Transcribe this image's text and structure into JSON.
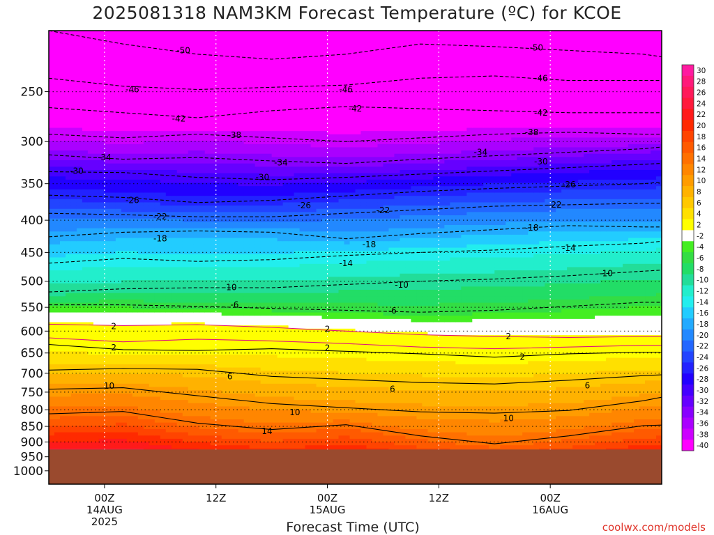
{
  "title": "2025081318 NAM3KM Forecast Temperature (ºC) for KCOE",
  "credit": "coolwx.com/models",
  "colors": {
    "ground": "#9a4a2e",
    "freezing_contour": "#e0157a"
  },
  "chart_data": {
    "type": "heatmap",
    "title": "2025081318 NAM3KM Forecast Temperature (ºC) for KCOE",
    "xlabel": "Forecast Time (UTC)",
    "ylabel": "",
    "grid": true,
    "y_axis": {
      "quantity": "pressure (hPa)",
      "inverted": true,
      "log_scale": true,
      "range": [
        1050,
        200
      ],
      "ticks": [
        250,
        300,
        350,
        400,
        450,
        500,
        550,
        600,
        650,
        700,
        750,
        800,
        850,
        900,
        950,
        1000
      ]
    },
    "x_axis": {
      "range": [
        "2025-08-13T18Z",
        "2025-08-16T12Z"
      ],
      "ticks": [
        {
          "time": "2025-08-14T00Z",
          "label": "00Z",
          "sublabel": "14AUG",
          "sublabel2": "2025"
        },
        {
          "time": "2025-08-14T12Z",
          "label": "12Z",
          "sublabel": "",
          "sublabel2": ""
        },
        {
          "time": "2025-08-15T00Z",
          "label": "00Z",
          "sublabel": "15AUG",
          "sublabel2": ""
        },
        {
          "time": "2025-08-15T12Z",
          "label": "12Z",
          "sublabel": "",
          "sublabel2": ""
        },
        {
          "time": "2025-08-16T00Z",
          "label": "00Z",
          "sublabel": "16AUG",
          "sublabel2": ""
        }
      ]
    },
    "ground_level_hpa": 925,
    "contours": [
      {
        "value": -50,
        "label": "-50",
        "style": "dashed",
        "points": [
          [
            0,
            200
          ],
          [
            8,
            210
          ],
          [
            16,
            218
          ],
          [
            24,
            222
          ],
          [
            32,
            218
          ],
          [
            40,
            210
          ],
          [
            48,
            212
          ],
          [
            56,
            215
          ],
          [
            64,
            218
          ],
          [
            66,
            220
          ]
        ]
      },
      {
        "value": -46,
        "label": "-46",
        "style": "dashed",
        "points": [
          [
            0,
            238
          ],
          [
            8,
            245
          ],
          [
            16,
            248
          ],
          [
            24,
            246
          ],
          [
            32,
            244
          ],
          [
            40,
            238
          ],
          [
            48,
            236
          ],
          [
            56,
            240
          ],
          [
            64,
            240
          ],
          [
            66,
            240
          ]
        ]
      },
      {
        "value": -42,
        "label": "-42",
        "style": "dashed",
        "points": [
          [
            0,
            265
          ],
          [
            8,
            270
          ],
          [
            16,
            275
          ],
          [
            24,
            268
          ],
          [
            32,
            264
          ],
          [
            40,
            266
          ],
          [
            48,
            268
          ],
          [
            56,
            270
          ],
          [
            64,
            270
          ],
          [
            66,
            270
          ]
        ]
      },
      {
        "value": -38,
        "label": "-38",
        "style": "dashed",
        "points": [
          [
            0,
            292
          ],
          [
            8,
            296
          ],
          [
            16,
            292
          ],
          [
            24,
            296
          ],
          [
            32,
            300
          ],
          [
            40,
            296
          ],
          [
            48,
            292
          ],
          [
            56,
            290
          ],
          [
            64,
            292
          ],
          [
            66,
            292
          ]
        ]
      },
      {
        "value": -34,
        "label": "-34",
        "style": "dashed",
        "points": [
          [
            0,
            315
          ],
          [
            8,
            320
          ],
          [
            16,
            318
          ],
          [
            24,
            322
          ],
          [
            32,
            325
          ],
          [
            40,
            320
          ],
          [
            48,
            316
          ],
          [
            56,
            312
          ],
          [
            64,
            308
          ],
          [
            66,
            306
          ]
        ]
      },
      {
        "value": -30,
        "label": "-30",
        "style": "dashed",
        "points": [
          [
            0,
            335
          ],
          [
            8,
            336
          ],
          [
            16,
            342
          ],
          [
            24,
            345
          ],
          [
            32,
            342
          ],
          [
            40,
            338
          ],
          [
            48,
            334
          ],
          [
            56,
            330
          ],
          [
            64,
            326
          ],
          [
            66,
            325
          ]
        ]
      },
      {
        "value": -26,
        "label": "-26",
        "style": "dashed",
        "points": [
          [
            0,
            365
          ],
          [
            8,
            368
          ],
          [
            16,
            375
          ],
          [
            24,
            372
          ],
          [
            32,
            366
          ],
          [
            40,
            360
          ],
          [
            48,
            356
          ],
          [
            56,
            353
          ],
          [
            64,
            350
          ],
          [
            66,
            348
          ]
        ]
      },
      {
        "value": -22,
        "label": "-22",
        "style": "dashed",
        "points": [
          [
            0,
            390
          ],
          [
            8,
            392
          ],
          [
            16,
            395
          ],
          [
            24,
            395
          ],
          [
            32,
            390
          ],
          [
            40,
            385
          ],
          [
            48,
            380
          ],
          [
            56,
            378
          ],
          [
            64,
            376
          ],
          [
            66,
            376
          ]
        ]
      },
      {
        "value": -18,
        "label": "-18",
        "style": "dashed",
        "points": [
          [
            0,
            425
          ],
          [
            8,
            418
          ],
          [
            16,
            416
          ],
          [
            24,
            418
          ],
          [
            32,
            428
          ],
          [
            40,
            420
          ],
          [
            48,
            414
          ],
          [
            56,
            408
          ],
          [
            64,
            410
          ],
          [
            66,
            410
          ]
        ]
      },
      {
        "value": -14,
        "label": "-14",
        "style": "dashed",
        "points": [
          [
            0,
            468
          ],
          [
            8,
            460
          ],
          [
            16,
            465
          ],
          [
            24,
            462
          ],
          [
            32,
            455
          ],
          [
            40,
            450
          ],
          [
            48,
            446
          ],
          [
            56,
            440
          ],
          [
            64,
            435
          ],
          [
            66,
            432
          ]
        ]
      },
      {
        "value": -10,
        "label": "-10",
        "style": "dashed",
        "points": [
          [
            0,
            520
          ],
          [
            8,
            514
          ],
          [
            16,
            512
          ],
          [
            24,
            512
          ],
          [
            32,
            506
          ],
          [
            40,
            500
          ],
          [
            48,
            496
          ],
          [
            56,
            490
          ],
          [
            64,
            482
          ],
          [
            66,
            480
          ]
        ]
      },
      {
        "value": -6,
        "label": "-6",
        "style": "dashed",
        "points": [
          [
            0,
            545
          ],
          [
            8,
            545
          ],
          [
            16,
            548
          ],
          [
            24,
            552
          ],
          [
            32,
            556
          ],
          [
            40,
            560
          ],
          [
            48,
            556
          ],
          [
            56,
            548
          ],
          [
            64,
            540
          ],
          [
            66,
            540
          ]
        ]
      },
      {
        "value": 2,
        "label": "2",
        "style": "solid",
        "color": "freezing",
        "points": [
          [
            0,
            585
          ],
          [
            8,
            588
          ],
          [
            16,
            586
          ],
          [
            24,
            592
          ],
          [
            32,
            600
          ],
          [
            40,
            608
          ],
          [
            48,
            612
          ],
          [
            56,
            614
          ],
          [
            64,
            612
          ],
          [
            66,
            612
          ]
        ]
      },
      {
        "value": 2,
        "label": "2",
        "style": "solid",
        "color": "freezing",
        "points": [
          [
            0,
            615
          ],
          [
            8,
            624
          ],
          [
            16,
            618
          ],
          [
            24,
            622
          ],
          [
            32,
            628
          ],
          [
            40,
            636
          ],
          [
            48,
            640
          ],
          [
            56,
            636
          ],
          [
            64,
            632
          ],
          [
            66,
            632
          ]
        ]
      },
      {
        "value": 2,
        "label": "2",
        "style": "solid",
        "points": [
          [
            0,
            630
          ],
          [
            8,
            642
          ],
          [
            16,
            644
          ],
          [
            24,
            640
          ],
          [
            32,
            646
          ],
          [
            40,
            652
          ],
          [
            48,
            660
          ],
          [
            56,
            652
          ],
          [
            64,
            648
          ],
          [
            66,
            648
          ]
        ]
      },
      {
        "value": 6,
        "label": "6",
        "style": "solid",
        "points": [
          [
            0,
            692
          ],
          [
            8,
            688
          ],
          [
            16,
            690
          ],
          [
            24,
            708
          ],
          [
            32,
            716
          ],
          [
            40,
            724
          ],
          [
            48,
            728
          ],
          [
            56,
            718
          ],
          [
            64,
            706
          ],
          [
            66,
            704
          ]
        ]
      },
      {
        "value": 10,
        "label": "10",
        "style": "solid",
        "points": [
          [
            0,
            742
          ],
          [
            8,
            738
          ],
          [
            16,
            760
          ],
          [
            24,
            782
          ],
          [
            32,
            794
          ],
          [
            40,
            806
          ],
          [
            48,
            810
          ],
          [
            56,
            802
          ],
          [
            64,
            774
          ],
          [
            66,
            764
          ]
        ]
      },
      {
        "value": 14,
        "label": "14",
        "style": "solid",
        "points": [
          [
            0,
            812
          ],
          [
            8,
            805
          ],
          [
            16,
            840
          ],
          [
            24,
            860
          ],
          [
            32,
            845
          ],
          [
            40,
            880
          ],
          [
            48,
            906
          ],
          [
            56,
            880
          ],
          [
            64,
            848
          ],
          [
            66,
            846
          ]
        ]
      }
    ],
    "contour_labels": [
      {
        "text": "-50",
        "t": 14.5,
        "p": 215
      },
      {
        "text": "-50",
        "t": 52.5,
        "p": 213
      },
      {
        "text": "-46",
        "t": 9,
        "p": 248
      },
      {
        "text": "-46",
        "t": 32,
        "p": 248
      },
      {
        "text": "-46",
        "t": 53,
        "p": 238
      },
      {
        "text": "-42",
        "t": 14,
        "p": 276
      },
      {
        "text": "-42",
        "t": 33,
        "p": 266
      },
      {
        "text": "-42",
        "t": 53,
        "p": 270
      },
      {
        "text": "-38",
        "t": 20,
        "p": 293
      },
      {
        "text": "-38",
        "t": 52,
        "p": 290
      },
      {
        "text": "-34",
        "t": 6,
        "p": 318
      },
      {
        "text": "-34",
        "t": 25,
        "p": 324
      },
      {
        "text": "-34",
        "t": 46.5,
        "p": 312
      },
      {
        "text": "-30",
        "t": 53,
        "p": 323
      },
      {
        "text": "-30",
        "t": 3,
        "p": 334
      },
      {
        "text": "-30",
        "t": 23,
        "p": 342
      },
      {
        "text": "-26",
        "t": 9,
        "p": 372
      },
      {
        "text": "-26",
        "t": 27.5,
        "p": 379
      },
      {
        "text": "-26",
        "t": 56,
        "p": 351
      },
      {
        "text": "-22",
        "t": 12,
        "p": 395
      },
      {
        "text": "-22",
        "t": 36,
        "p": 386
      },
      {
        "text": "-22",
        "t": 54.5,
        "p": 378
      },
      {
        "text": "-18",
        "t": 12,
        "p": 428
      },
      {
        "text": "-18",
        "t": 34.5,
        "p": 437
      },
      {
        "text": "-18",
        "t": 52,
        "p": 411
      },
      {
        "text": "-14",
        "t": 32,
        "p": 468
      },
      {
        "text": "-14",
        "t": 56,
        "p": 443
      },
      {
        "text": "-10",
        "t": 19.5,
        "p": 511
      },
      {
        "text": "-10",
        "t": 38,
        "p": 507
      },
      {
        "text": "-10",
        "t": 60,
        "p": 486
      },
      {
        "text": "-6",
        "t": 20,
        "p": 545
      },
      {
        "text": "-6",
        "t": 37,
        "p": 557
      },
      {
        "text": "2",
        "t": 7,
        "p": 590
      },
      {
        "text": "2",
        "t": 30,
        "p": 596
      },
      {
        "text": "2",
        "t": 7,
        "p": 637
      },
      {
        "text": "2",
        "t": 30,
        "p": 638
      },
      {
        "text": "2",
        "t": 49.5,
        "p": 612
      },
      {
        "text": "2",
        "t": 51,
        "p": 660
      },
      {
        "text": "6",
        "t": 19.5,
        "p": 708
      },
      {
        "text": "6",
        "t": 37,
        "p": 742
      },
      {
        "text": "6",
        "t": 58,
        "p": 732
      },
      {
        "text": "10",
        "t": 6.5,
        "p": 733
      },
      {
        "text": "10",
        "t": 26.5,
        "p": 808
      },
      {
        "text": "10",
        "t": 49.5,
        "p": 825
      },
      {
        "text": "14",
        "t": 23.5,
        "p": 865
      }
    ],
    "colorbar": {
      "labels": [
        "30",
        "28",
        "26",
        "24",
        "22",
        "20",
        "18",
        "16",
        "14",
        "12",
        "10",
        "8",
        "6",
        "4",
        "2",
        "-2",
        "-4",
        "-6",
        "-8",
        "-10",
        "-12",
        "-14",
        "-16",
        "-18",
        "-20",
        "-22",
        "-24",
        "-26",
        "-28",
        "-30",
        "-32",
        "-34",
        "-36",
        "-38",
        "-40"
      ],
      "colors": [
        "#ff1aa0",
        "#ff1a7a",
        "#ff1a5a",
        "#ff1a3c",
        "#ff1a1a",
        "#ff2a00",
        "#ff4400",
        "#ff5a00",
        "#ff7000",
        "#ff8600",
        "#ff9c00",
        "#ffb200",
        "#ffc800",
        "#ffe000",
        "#ffff00",
        "#ffffff",
        "#44ee22",
        "#33dd44",
        "#22dd66",
        "#22dd99",
        "#22eecc",
        "#22eeee",
        "#22ccff",
        "#22aaff",
        "#2288ff",
        "#2266ff",
        "#2244ff",
        "#2222ff",
        "#2200ff",
        "#4400ff",
        "#6600ff",
        "#8800ff",
        "#aa00ff",
        "#cc00ff",
        "#ff00ff"
      ]
    }
  }
}
